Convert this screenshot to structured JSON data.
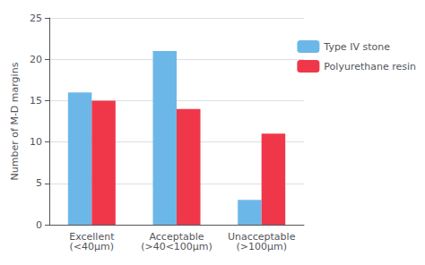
{
  "chart_data": {
    "type": "bar",
    "categories": [
      "Excellent\n(<40μm)",
      "Acceptable\n(>40<100μm)",
      "Unacceptable\n(>100μm)"
    ],
    "series": [
      {
        "name": "Type IV stone",
        "color": "#6BB8E8",
        "values": [
          16,
          21,
          3
        ]
      },
      {
        "name": "Polyurethane resin",
        "color": "#F0374A",
        "values": [
          15,
          14,
          11
        ]
      }
    ],
    "ylabel": "Number of M-D margins",
    "ylim": [
      0,
      25
    ],
    "yticks": [
      0,
      5,
      10,
      15,
      20,
      25
    ],
    "grid": true,
    "legend": "right"
  }
}
